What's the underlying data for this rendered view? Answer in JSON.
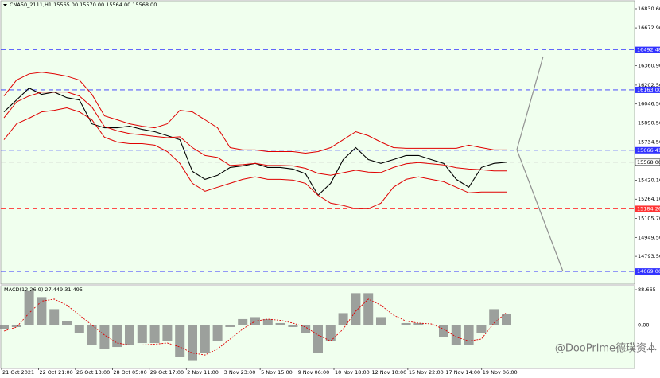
{
  "chart_data": {
    "type": "line",
    "title": "CNA50_2111,H1  15565.00 15570.00 15564.00 15568.00",
    "xtick_labels": [
      "21 Oct 2021",
      "22 Oct 21:00",
      "26 Oct 13:00",
      "28 Oct 05:00",
      "29 Oct 17:00",
      "2 Nov 11:00",
      "3 Nov 23:00",
      "5 Nov 15:00",
      "9 Nov 06:00",
      "10 Nov 18:00",
      "12 Nov 10:00",
      "15 Nov 22:00",
      "17 Nov 14:00",
      "19 Nov 06:00"
    ],
    "series": [
      {
        "color": "#000000",
        "values": [
          15982,
          16080,
          16178,
          16126,
          16145,
          16099,
          16080,
          15884,
          15851,
          15851,
          15864,
          15838,
          15819,
          15786,
          15753,
          15492,
          15427,
          15460,
          15525,
          15538,
          15558,
          15525,
          15525,
          15512,
          15473,
          15296,
          15394,
          15590,
          15688,
          15590,
          15558,
          15590,
          15623,
          15623,
          15590,
          15558,
          15427,
          15362,
          15525,
          15558,
          15568
        ]
      },
      {
        "color": "#e00000",
        "values": [
          16113,
          16243,
          16295,
          16308,
          16295,
          16276,
          16243,
          16126,
          15949,
          15917,
          15884,
          15864,
          15851,
          15884,
          15995,
          15982,
          15917,
          15851,
          15688,
          15669,
          15669,
          15655,
          15655,
          15655,
          15642,
          15655,
          15688,
          15753,
          15819,
          15786,
          15734,
          15688,
          15682,
          15682,
          15682,
          15682,
          15682,
          15708,
          15688,
          15669,
          15669
        ]
      },
      {
        "color": "#e00000",
        "values": [
          15933,
          16064,
          16113,
          16145,
          16145,
          16146,
          16113,
          16022,
          15861,
          15826,
          15803,
          15793,
          15780,
          15770,
          15777,
          15688,
          15623,
          15607,
          15541,
          15548,
          15558,
          15541,
          15541,
          15538,
          15518,
          15476,
          15460,
          15482,
          15502,
          15486,
          15483,
          15525,
          15555,
          15565,
          15555,
          15545,
          15522,
          15512,
          15506,
          15496,
          15496
        ]
      },
      {
        "color": "#e00000",
        "values": [
          15753,
          15884,
          15930,
          15982,
          15995,
          16015,
          15982,
          15917,
          15773,
          15734,
          15721,
          15721,
          15708,
          15655,
          15558,
          15394,
          15329,
          15362,
          15394,
          15427,
          15447,
          15427,
          15427,
          15420,
          15394,
          15296,
          15231,
          15211,
          15185,
          15185,
          15231,
          15362,
          15427,
          15447,
          15427,
          15407,
          15362,
          15316,
          15323,
          15323,
          15323
        ]
      }
    ],
    "ylim": [
      14565,
      16896
    ],
    "yticks": [
      {
        "value": 16830.6,
        "label": "16830.60"
      },
      {
        "value": 16672.9,
        "label": "16672.90"
      },
      {
        "value": 16360.9,
        "label": "16360.90"
      },
      {
        "value": 16202.5,
        "label": "16202.50"
      },
      {
        "value": 16046.5,
        "label": "16046.50"
      },
      {
        "value": 15890.5,
        "label": "15890.50"
      },
      {
        "value": 15734.5,
        "label": "15734.50"
      },
      {
        "value": 15420.1,
        "label": "15420.10"
      },
      {
        "value": 15264.1,
        "label": "15264.10"
      },
      {
        "value": 15105.7,
        "label": "15105.70"
      },
      {
        "value": 14949.5,
        "label": "14949.50"
      },
      {
        "value": 14793.5,
        "label": "14793.50"
      }
    ],
    "levels": [
      {
        "value": 16492.48,
        "label": "16492.48",
        "color": "#3333ff"
      },
      {
        "value": 16163,
        "label": "16163.00",
        "color": "#3333ff"
      },
      {
        "value": 15666.41,
        "label": "15666.41",
        "color": "#3333ff"
      },
      {
        "value": 15568,
        "label": "15568.00",
        "color": "#c0c0c0"
      },
      {
        "value": 15184.26,
        "label": "15184.26",
        "color": "#ff3333"
      },
      {
        "value": 14669.06,
        "label": "14669.06",
        "color": "#3333ff"
      }
    ],
    "macd": {
      "title": "MACD(12,26,9) 27.449 31.495",
      "histogram_color": "#808080",
      "signal_color": "#e00000",
      "histogram": [
        -10,
        -5,
        85,
        70,
        40,
        10,
        -20,
        -50,
        -60,
        -55,
        -50,
        -45,
        -45,
        -40,
        -80,
        -90,
        -70,
        -40,
        -5,
        15,
        20,
        15,
        5,
        -5,
        -20,
        -70,
        -40,
        30,
        80,
        80,
        20,
        0,
        5,
        5,
        0,
        -30,
        -50,
        -50,
        -20,
        40,
        27.449
      ],
      "signal": [
        -15,
        -5,
        30,
        60,
        65,
        50,
        25,
        0,
        -25,
        -45,
        -50,
        -50,
        -48,
        -45,
        -55,
        -70,
        -75,
        -60,
        -35,
        -10,
        10,
        15,
        12,
        5,
        -5,
        -25,
        -40,
        -10,
        35,
        65,
        50,
        25,
        10,
        5,
        3,
        -10,
        -30,
        -40,
        -35,
        5,
        31.495
      ],
      "ylim": [
        -108.8,
        98.7
      ],
      "yticks": [
        88.665,
        {
          "value": 0,
          "label": "0.00"
        }
      ]
    },
    "watermark": "@DooPrime德璞资本"
  }
}
